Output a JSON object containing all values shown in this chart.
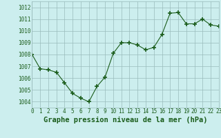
{
  "x": [
    0,
    1,
    2,
    3,
    4,
    5,
    6,
    7,
    8,
    9,
    10,
    11,
    12,
    13,
    14,
    15,
    16,
    17,
    18,
    19,
    20,
    21,
    22,
    23
  ],
  "y": [
    1008.0,
    1006.8,
    1006.7,
    1006.5,
    1005.6,
    1004.7,
    1004.3,
    1004.0,
    1005.3,
    1006.1,
    1008.1,
    1009.0,
    1009.0,
    1008.8,
    1008.4,
    1008.6,
    1009.7,
    1011.5,
    1011.55,
    1010.6,
    1010.6,
    1011.0,
    1010.5,
    1010.4
  ],
  "xlim": [
    0,
    23
  ],
  "ylim": [
    1003.5,
    1012.5
  ],
  "yticks": [
    1004,
    1005,
    1006,
    1007,
    1008,
    1009,
    1010,
    1011,
    1012
  ],
  "xticks": [
    0,
    1,
    2,
    3,
    4,
    5,
    6,
    7,
    8,
    9,
    10,
    11,
    12,
    13,
    14,
    15,
    16,
    17,
    18,
    19,
    20,
    21,
    22,
    23
  ],
  "xlabel": "Graphe pression niveau de la mer (hPa)",
  "line_color": "#1a5c1a",
  "marker": "+",
  "marker_size": 4,
  "bg_color": "#cceeee",
  "grid_color": "#99bbbb",
  "tick_fontsize": 5.5,
  "xlabel_fontsize": 7.5
}
